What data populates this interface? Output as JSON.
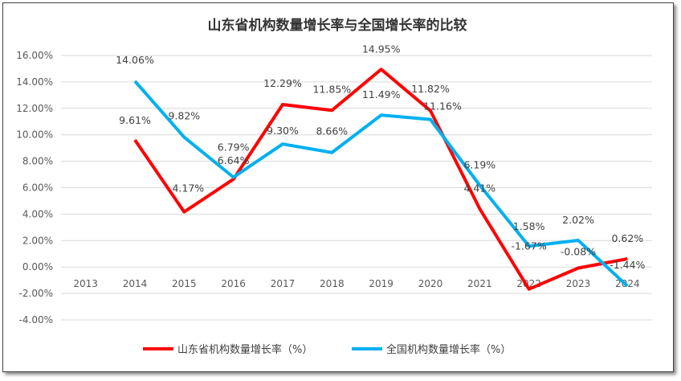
{
  "chart_data": {
    "type": "line",
    "title": "山东省机构数量增长率与全国增长率的比较",
    "categories": [
      "2013",
      "2014",
      "2015",
      "2016",
      "2017",
      "2018",
      "2019",
      "2020",
      "2021",
      "2022",
      "2023",
      "2024"
    ],
    "ylim": [
      -4,
      16
    ],
    "yticks": [
      "-4.00%",
      "-2.00%",
      "0.00%",
      "2.00%",
      "4.00%",
      "6.00%",
      "8.00%",
      "10.00%",
      "12.00%",
      "14.00%",
      "16.00%"
    ],
    "grid": true,
    "legend": "bottom",
    "series": [
      {
        "name": "山东省机构数量增长率（%）",
        "color": "#FF0000",
        "values": [
          null,
          9.61,
          4.17,
          6.64,
          12.29,
          11.85,
          14.95,
          11.82,
          4.41,
          -1.67,
          -0.08,
          0.62
        ],
        "labels": [
          "",
          "9.61%",
          "4.17%",
          "6.64%",
          "12.29%",
          "11.85%",
          "14.95%",
          "11.82%",
          "4.41%",
          "-1.67%",
          "-0.08%",
          "0.62%"
        ]
      },
      {
        "name": "全国机构数量增长率（%）",
        "color": "#00B0F0",
        "values": [
          null,
          14.06,
          9.82,
          6.79,
          9.3,
          8.66,
          11.49,
          11.16,
          6.19,
          1.58,
          2.02,
          -1.44
        ],
        "labels": [
          "",
          "14.06%",
          "9.82%",
          "6.79%",
          "9.30%",
          "8.66%",
          "11.49%",
          "11.16%",
          "6.19%",
          "1.58%",
          "2.02%",
          "-1.44%"
        ]
      }
    ]
  }
}
